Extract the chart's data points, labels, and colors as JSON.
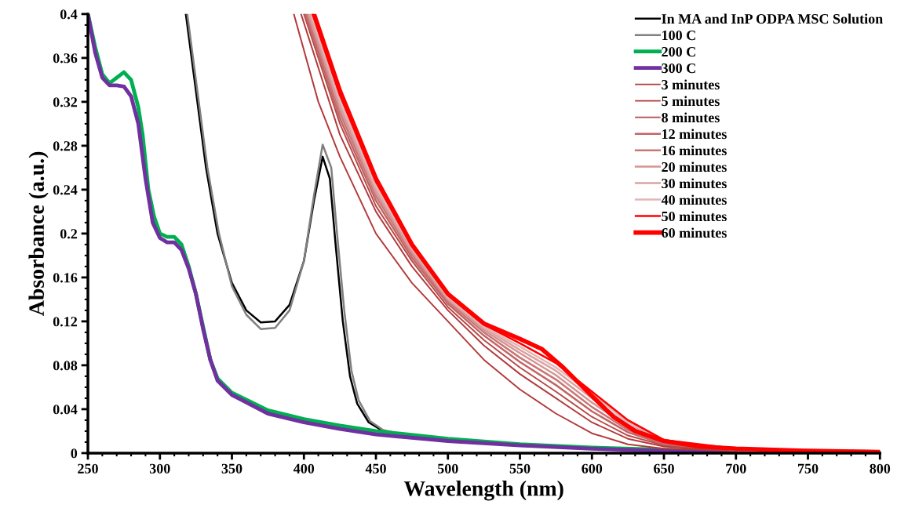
{
  "chart_data": {
    "type": "line",
    "xlabel": "Wavelength (nm)",
    "ylabel": "Absorbance (a.u.)",
    "xlim": [
      250,
      800
    ],
    "ylim": [
      0,
      0.4
    ],
    "xticks": [
      250,
      300,
      350,
      400,
      450,
      500,
      550,
      600,
      650,
      700,
      750,
      800
    ],
    "yticks": [
      0,
      0.04,
      0.08,
      0.12,
      0.16,
      0.2,
      0.24,
      0.28,
      0.32,
      0.36,
      0.4
    ],
    "legend": "top right",
    "grid": false,
    "marker": "none",
    "line_style": "solid",
    "series": [
      {
        "name": "In MA and InP ODPA MSC Solution",
        "color": "#000000",
        "x": [
          318,
          325,
          332,
          340,
          350,
          360,
          370,
          380,
          390,
          400,
          407,
          413,
          418,
          422,
          427,
          432,
          437,
          445,
          455,
          475,
          500,
          550,
          600,
          650,
          700,
          800
        ],
        "values": [
          0.4,
          0.33,
          0.26,
          0.2,
          0.155,
          0.13,
          0.119,
          0.12,
          0.135,
          0.175,
          0.23,
          0.27,
          0.25,
          0.19,
          0.12,
          0.07,
          0.045,
          0.028,
          0.02,
          0.015,
          0.012,
          0.007,
          0.004,
          0.002,
          0.001,
          0.0005
        ]
      },
      {
        "name": "100 C",
        "color": "#808080",
        "x": [
          319,
          326,
          333,
          341,
          350,
          360,
          370,
          380,
          390,
          400,
          407,
          413,
          419,
          423,
          428,
          433,
          438,
          446,
          455,
          475,
          500,
          550,
          600,
          650,
          700,
          800
        ],
        "values": [
          0.4,
          0.33,
          0.26,
          0.2,
          0.152,
          0.126,
          0.113,
          0.114,
          0.13,
          0.175,
          0.235,
          0.281,
          0.26,
          0.2,
          0.13,
          0.075,
          0.048,
          0.029,
          0.021,
          0.015,
          0.012,
          0.007,
          0.004,
          0.002,
          0.001,
          0.0005
        ]
      },
      {
        "name": "200 C",
        "color": "#00b050",
        "x": [
          250,
          255,
          260,
          265,
          270,
          275,
          280,
          285,
          288,
          292,
          296,
          300,
          305,
          310,
          315,
          320,
          325,
          330,
          335,
          340,
          350,
          375,
          400,
          425,
          450,
          500,
          550,
          600,
          650,
          700,
          800
        ],
        "values": [
          0.4,
          0.37,
          0.345,
          0.337,
          0.342,
          0.347,
          0.34,
          0.315,
          0.29,
          0.24,
          0.215,
          0.2,
          0.197,
          0.197,
          0.19,
          0.17,
          0.145,
          0.115,
          0.085,
          0.068,
          0.055,
          0.039,
          0.031,
          0.025,
          0.02,
          0.013,
          0.008,
          0.005,
          0.003,
          0.002,
          0.001
        ]
      },
      {
        "name": "300 C",
        "color": "#7030a0",
        "x": [
          250,
          255,
          260,
          265,
          270,
          275,
          280,
          285,
          290,
          295,
          300,
          305,
          310,
          315,
          320,
          325,
          330,
          335,
          340,
          350,
          375,
          400,
          425,
          450,
          500,
          550,
          600,
          650,
          700,
          800
        ],
        "values": [
          0.4,
          0.365,
          0.342,
          0.335,
          0.335,
          0.334,
          0.325,
          0.3,
          0.25,
          0.21,
          0.196,
          0.192,
          0.192,
          0.185,
          0.168,
          0.145,
          0.113,
          0.085,
          0.066,
          0.053,
          0.036,
          0.028,
          0.022,
          0.017,
          0.011,
          0.007,
          0.004,
          0.002,
          0.001,
          0.0005
        ]
      },
      {
        "name": "3 minutes",
        "color": "#b33a3a",
        "x": [
          393,
          410,
          425,
          450,
          475,
          500,
          525,
          550,
          575,
          600,
          625,
          650,
          700,
          750,
          800
        ],
        "values": [
          0.4,
          0.32,
          0.27,
          0.2,
          0.155,
          0.12,
          0.085,
          0.058,
          0.036,
          0.018,
          0.008,
          0.004,
          0.002,
          0.001,
          0.0005
        ]
      },
      {
        "name": "5 minutes",
        "color": "#b33a3a",
        "x": [
          398,
          425,
          450,
          475,
          500,
          525,
          550,
          575,
          600,
          625,
          650,
          700,
          800
        ],
        "values": [
          0.4,
          0.29,
          0.22,
          0.17,
          0.13,
          0.098,
          0.072,
          0.05,
          0.028,
          0.013,
          0.006,
          0.002,
          0.0005
        ]
      },
      {
        "name": "8 minutes",
        "color": "#b84848",
        "x": [
          400,
          425,
          450,
          475,
          500,
          525,
          550,
          575,
          600,
          625,
          650,
          700,
          800
        ],
        "values": [
          0.4,
          0.3,
          0.225,
          0.175,
          0.133,
          0.103,
          0.078,
          0.056,
          0.033,
          0.016,
          0.007,
          0.002,
          0.0005
        ]
      },
      {
        "name": "12 minutes",
        "color": "#c26565",
        "x": [
          401,
          425,
          450,
          475,
          500,
          525,
          550,
          575,
          600,
          625,
          650,
          700,
          800
        ],
        "values": [
          0.4,
          0.305,
          0.23,
          0.178,
          0.136,
          0.107,
          0.083,
          0.062,
          0.038,
          0.019,
          0.008,
          0.003,
          0.001
        ]
      },
      {
        "name": "16 minutes",
        "color": "#c87676",
        "x": [
          402,
          425,
          450,
          475,
          500,
          525,
          550,
          575,
          600,
          625,
          650,
          700,
          800
        ],
        "values": [
          0.4,
          0.31,
          0.234,
          0.181,
          0.138,
          0.11,
          0.087,
          0.067,
          0.042,
          0.021,
          0.009,
          0.003,
          0.001
        ]
      },
      {
        "name": "20 minutes",
        "color": "#d49494",
        "x": [
          403,
          425,
          450,
          475,
          500,
          525,
          550,
          575,
          600,
          625,
          650,
          700,
          800
        ],
        "values": [
          0.4,
          0.314,
          0.237,
          0.183,
          0.14,
          0.112,
          0.091,
          0.071,
          0.046,
          0.024,
          0.01,
          0.003,
          0.001
        ]
      },
      {
        "name": "30 minutes",
        "color": "#dba3a3",
        "x": [
          404,
          425,
          450,
          475,
          500,
          525,
          550,
          575,
          600,
          625,
          650,
          700,
          800
        ],
        "values": [
          0.4,
          0.318,
          0.24,
          0.185,
          0.141,
          0.114,
          0.094,
          0.075,
          0.05,
          0.026,
          0.011,
          0.003,
          0.001
        ]
      },
      {
        "name": "40 minutes",
        "color": "#e3b6b6",
        "x": [
          405,
          425,
          450,
          475,
          500,
          525,
          550,
          575,
          600,
          625,
          650,
          700,
          800
        ],
        "values": [
          0.4,
          0.321,
          0.243,
          0.187,
          0.142,
          0.115,
          0.097,
          0.078,
          0.054,
          0.028,
          0.012,
          0.003,
          0.001
        ]
      },
      {
        "name": "50 minutes",
        "color": "#ff0000",
        "x": [
          406,
          425,
          450,
          475,
          500,
          525,
          550,
          575,
          600,
          625,
          650,
          700,
          800
        ],
        "values": [
          0.4,
          0.326,
          0.247,
          0.189,
          0.144,
          0.117,
          0.1,
          0.082,
          0.056,
          0.03,
          0.012,
          0.004,
          0.001
        ]
      },
      {
        "name": "60 minutes",
        "color": "#ff0000",
        "x": [
          407,
          425,
          450,
          475,
          500,
          525,
          550,
          565,
          580,
          600,
          615,
          630,
          650,
          675,
          700,
          750,
          800
        ],
        "values": [
          0.4,
          0.33,
          0.25,
          0.19,
          0.145,
          0.118,
          0.104,
          0.095,
          0.078,
          0.052,
          0.033,
          0.02,
          0.011,
          0.006,
          0.004,
          0.002,
          0.001
        ]
      }
    ]
  }
}
